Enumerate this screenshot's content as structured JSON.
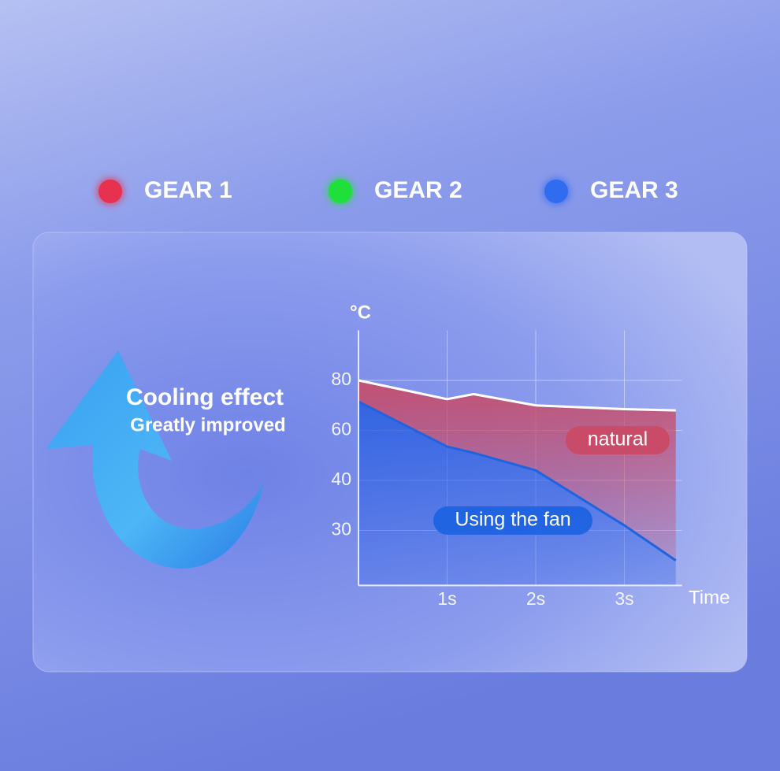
{
  "gears": [
    {
      "label": "GEAR 1",
      "color": "#e8304f"
    },
    {
      "label": "GEAR 2",
      "color": "#1fe03a"
    },
    {
      "label": "GEAR 3",
      "color": "#2f6cf0"
    }
  ],
  "headline": "Cooling effect",
  "subheadline": "Greatly improved",
  "chart_data": {
    "type": "area",
    "title": "°C",
    "x_label": "Time",
    "x": [
      0,
      1,
      1.3,
      2,
      3,
      3.58
    ],
    "series": [
      {
        "name": "natural",
        "color": "#c94a66",
        "values": [
          80,
          72.5,
          74.5,
          70,
          68.5,
          68
        ]
      },
      {
        "name": "Using the fan",
        "color": "#1f63e0",
        "values": [
          71.5,
          53.5,
          51,
          44,
          31,
          24
        ]
      }
    ],
    "xlim": [
      0,
      3.65
    ],
    "xticks": [
      {
        "value": 1,
        "label": "1s"
      },
      {
        "value": 2,
        "label": "2s"
      },
      {
        "value": 3,
        "label": "3s"
      }
    ],
    "ylim": [
      19,
      100
    ],
    "yticks": [
      80,
      60,
      40,
      30
    ],
    "grid": true
  }
}
